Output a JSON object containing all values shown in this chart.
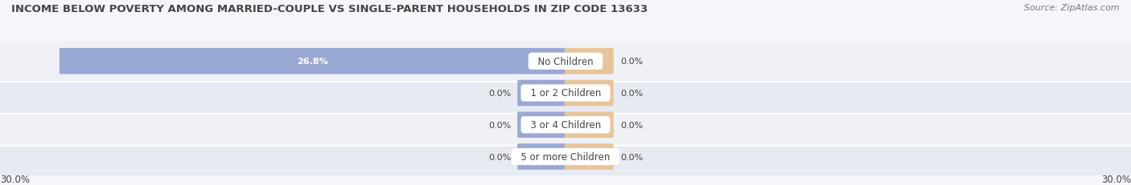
{
  "title": "INCOME BELOW POVERTY AMONG MARRIED-COUPLE VS SINGLE-PARENT HOUSEHOLDS IN ZIP CODE 13633",
  "source": "Source: ZipAtlas.com",
  "categories": [
    "No Children",
    "1 or 2 Children",
    "3 or 4 Children",
    "5 or more Children"
  ],
  "married_values": [
    26.8,
    0.0,
    0.0,
    0.0
  ],
  "single_values": [
    0.0,
    0.0,
    0.0,
    0.0
  ],
  "married_color": "#9aa8d4",
  "single_color": "#e8c49a",
  "married_min_color": "#b8c2e0",
  "single_min_color": "#f0d8b8",
  "row_bg_colors": [
    "#e8eaf2",
    "#f0f1f6"
  ],
  "xlim": 30.0,
  "min_bar_display": 2.5,
  "title_fontsize": 9.5,
  "source_fontsize": 8.0,
  "label_fontsize": 8.0,
  "category_fontsize": 8.5,
  "legend_fontsize": 8.5,
  "axis_label_fontsize": 8.5,
  "title_color": "#444444",
  "text_color": "#444444",
  "source_color": "#777777",
  "background_color": "#f5f6fa"
}
